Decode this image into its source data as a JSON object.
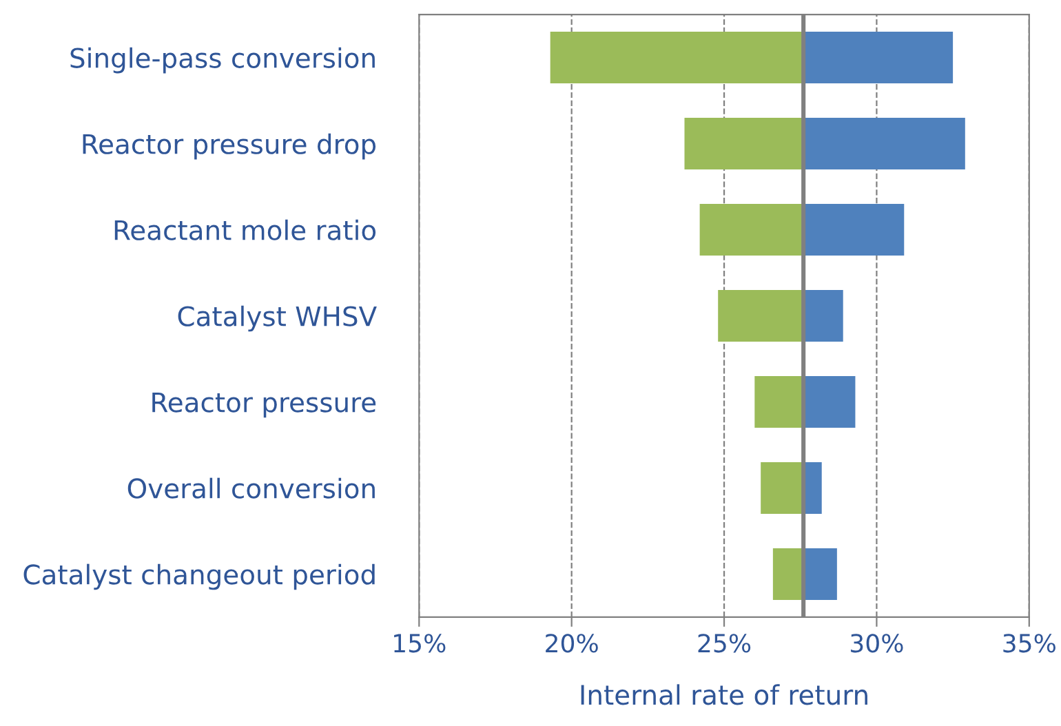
{
  "chart_data": {
    "type": "bar",
    "orientation": "horizontal",
    "xlabel": "Internal rate of return",
    "categories": [
      "Single-pass conversion",
      "Reactor pressure drop",
      "Reactant mole ratio",
      "Catalyst WHSV",
      "Reactor pressure",
      "Overall conversion",
      "Catalyst changeout period"
    ],
    "series": [
      {
        "color": "#9bbb59",
        "base": [
          19.3,
          23.7,
          24.2,
          24.8,
          26.0,
          26.2,
          26.6
        ],
        "values": [
          8.3,
          3.9,
          3.4,
          2.8,
          1.6,
          1.4,
          1.0
        ]
      },
      {
        "color": "#4f81bd",
        "base": [
          27.6,
          27.6,
          27.6,
          27.6,
          27.6,
          27.6,
          27.6
        ],
        "values": [
          4.9,
          5.3,
          3.3,
          1.3,
          1.7,
          0.6,
          1.1
        ]
      }
    ],
    "xlim": [
      15,
      35
    ],
    "xticks": [
      {
        "value": 15,
        "label": "15%"
      },
      {
        "value": 20,
        "label": "20%"
      },
      {
        "value": 25,
        "label": "25%"
      },
      {
        "value": 30,
        "label": "30%"
      },
      {
        "value": 35,
        "label": "35%"
      }
    ],
    "grid": "x",
    "line_style": "dashed",
    "ref_lines": [
      {
        "axis": "x",
        "value": 27.6,
        "color": "#808080"
      }
    ]
  }
}
